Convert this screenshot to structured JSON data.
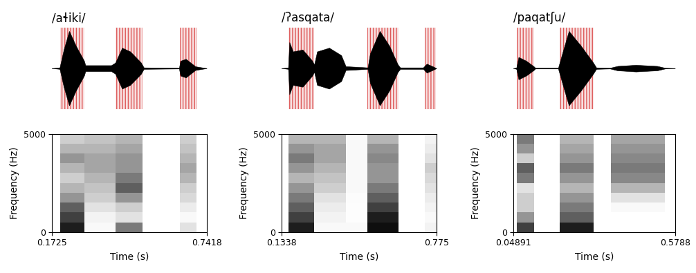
{
  "chart_data": [
    {
      "type": "spectrogram",
      "title": "/aɬiki/",
      "xlabel": "Time (s)",
      "ylabel": "Frequency (Hz)",
      "xlim": [
        0.1725,
        0.7418
      ],
      "xticks": [
        0.1725,
        0.7418
      ],
      "ylim": [
        0,
        5000
      ],
      "yticks": [
        0,
        5000
      ],
      "color": "#000000",
      "highlight_color": "#cc0000",
      "waveform": {
        "times": [
          0.1725,
          0.2,
          0.215,
          0.235,
          0.26,
          0.29,
          0.295,
          0.39,
          0.405,
          0.43,
          0.46,
          0.5,
          0.51,
          0.64,
          0.645,
          0.665,
          0.7,
          0.7418
        ],
        "amplitudes": [
          0.0,
          0.02,
          0.5,
          1.0,
          0.6,
          0.2,
          0.08,
          0.08,
          0.15,
          0.55,
          0.45,
          0.15,
          0.02,
          0.01,
          0.2,
          0.25,
          0.05,
          0.0
        ]
      },
      "highlighted_intervals": [
        [
          0.203,
          0.292
        ],
        [
          0.405,
          0.506
        ],
        [
          0.642,
          0.706
        ]
      ],
      "spectrogram": {
        "time_edges": [
          0.1725,
          0.203,
          0.292,
          0.405,
          0.506,
          0.642,
          0.705,
          0.7418
        ],
        "freq_edges": [
          0,
          500,
          1000,
          1500,
          2000,
          2500,
          3000,
          3500,
          4000,
          4500,
          5000
        ],
        "range": [
          0,
          1
        ],
        "cells": [
          [
            0,
            0,
            0,
            0,
            0,
            0,
            0,
            0,
            0,
            0
          ],
          [
            0.9,
            0.8,
            0.7,
            0.5,
            0.4,
            0.3,
            0.4,
            0.5,
            0.4,
            0.3
          ],
          [
            0.05,
            0.1,
            0.2,
            0.3,
            0.35,
            0.4,
            0.45,
            0.45,
            0.4,
            0.35
          ],
          [
            0.6,
            0.2,
            0.3,
            0.5,
            0.7,
            0.6,
            0.5,
            0.5,
            0.45,
            0.4
          ],
          [
            0,
            0,
            0,
            0,
            0,
            0,
            0,
            0,
            0,
            0
          ],
          [
            0.2,
            0.05,
            0.15,
            0.25,
            0.3,
            0.4,
            0.45,
            0.4,
            0.35,
            0.3
          ],
          [
            0,
            0,
            0,
            0,
            0,
            0,
            0,
            0,
            0,
            0
          ]
        ]
      }
    },
    {
      "type": "spectrogram",
      "title": "/ʔasqata/",
      "xlabel": "Time (s)",
      "ylabel": "Frequency (Hz)",
      "xlim": [
        0.1338,
        0.775
      ],
      "xticks": [
        0.1338,
        0.775
      ],
      "ylim": [
        0,
        5000
      ],
      "yticks": [
        0,
        5000
      ],
      "color": "#000000",
      "highlight_color": "#cc0000",
      "waveform": {
        "times": [
          0.1338,
          0.16,
          0.165,
          0.18,
          0.22,
          0.26,
          0.268,
          0.28,
          0.33,
          0.38,
          0.399,
          0.405,
          0.49,
          0.5,
          0.54,
          0.58,
          0.615,
          0.625,
          0.72,
          0.735,
          0.76,
          0.775
        ],
        "amplitudes": [
          0.0,
          0.02,
          0.7,
          0.45,
          0.5,
          0.2,
          0.1,
          0.45,
          0.55,
          0.35,
          0.05,
          0.05,
          0.02,
          0.4,
          1.0,
          0.6,
          0.1,
          0.02,
          0.02,
          0.12,
          0.05,
          0.0
        ]
      },
      "highlighted_intervals": [
        [
          0.162,
          0.268
        ],
        [
          0.49,
          0.618
        ],
        [
          0.727,
          0.772
        ]
      ],
      "spectrogram": {
        "time_edges": [
          0.1338,
          0.162,
          0.268,
          0.399,
          0.49,
          0.618,
          0.727,
          0.775
        ],
        "freq_edges": [
          0,
          500,
          1000,
          1500,
          2000,
          2500,
          3000,
          3500,
          4000,
          4500,
          5000
        ],
        "range": [
          0,
          1
        ],
        "cells": [
          [
            0,
            0,
            0,
            0,
            0,
            0,
            0,
            0,
            0,
            0
          ],
          [
            0.9,
            0.8,
            0.7,
            0.6,
            0.5,
            0.4,
            0.5,
            0.6,
            0.5,
            0.4
          ],
          [
            0.05,
            0.1,
            0.15,
            0.2,
            0.3,
            0.35,
            0.4,
            0.45,
            0.45,
            0.4
          ],
          [
            0.05,
            0.02,
            0.02,
            0.03,
            0.05,
            0.05,
            0.05,
            0.05,
            0.05,
            0.05
          ],
          [
            0.95,
            0.9,
            0.8,
            0.7,
            0.6,
            0.5,
            0.5,
            0.55,
            0.5,
            0.4
          ],
          [
            0,
            0,
            0,
            0,
            0,
            0,
            0,
            0,
            0,
            0
          ],
          [
            0.1,
            0.05,
            0.1,
            0.15,
            0.2,
            0.25,
            0.3,
            0.2,
            0.15,
            0.1
          ]
        ]
      }
    },
    {
      "type": "spectrogram",
      "title": "/paqatʃu/",
      "xlabel": "Time (s)",
      "ylabel": "Frequency (Hz)",
      "xlim": [
        0.04891,
        0.5788
      ],
      "xticks": [
        0.04891,
        0.5788
      ],
      "ylim": [
        0,
        5000
      ],
      "yticks": [
        0,
        5000
      ],
      "color": "#000000",
      "highlight_color": "#cc0000",
      "waveform": {
        "times": [
          0.04891,
          0.058,
          0.065,
          0.09,
          0.115,
          0.12,
          0.195,
          0.205,
          0.23,
          0.27,
          0.31,
          0.32,
          0.365,
          0.39,
          0.45,
          0.52,
          0.546,
          0.5788
        ],
        "amplitudes": [
          0.0,
          0.02,
          0.3,
          0.2,
          0.05,
          0.01,
          0.01,
          0.3,
          1.0,
          0.6,
          0.15,
          0.02,
          0.01,
          0.06,
          0.09,
          0.06,
          0.01,
          0.0
        ]
      },
      "highlighted_intervals": [
        [
          0.06,
          0.116
        ],
        [
          0.199,
          0.311
        ]
      ],
      "spectrogram": {
        "time_edges": [
          0.04891,
          0.06,
          0.116,
          0.199,
          0.311,
          0.367,
          0.546,
          0.5788
        ],
        "freq_edges": [
          0,
          500,
          1000,
          1500,
          2000,
          2500,
          3000,
          3500,
          4000,
          4500,
          5000
        ],
        "range": [
          0,
          1
        ],
        "cells": [
          [
            0,
            0,
            0,
            0,
            0,
            0,
            0,
            0,
            0,
            0
          ],
          [
            0.8,
            0.5,
            0.3,
            0.3,
            0.2,
            0.6,
            0.7,
            0.3,
            0.5,
            0.6
          ],
          [
            0,
            0,
            0,
            0,
            0,
            0,
            0,
            0,
            0,
            0
          ],
          [
            0.9,
            0.7,
            0.6,
            0.5,
            0.4,
            0.5,
            0.6,
            0.5,
            0.45,
            0.4
          ],
          [
            0,
            0,
            0,
            0,
            0,
            0,
            0,
            0,
            0,
            0
          ],
          [
            0,
            0,
            0.05,
            0.2,
            0.4,
            0.55,
            0.6,
            0.55,
            0.5,
            0.45
          ],
          [
            0,
            0,
            0,
            0,
            0,
            0,
            0,
            0,
            0,
            0
          ]
        ]
      }
    }
  ]
}
